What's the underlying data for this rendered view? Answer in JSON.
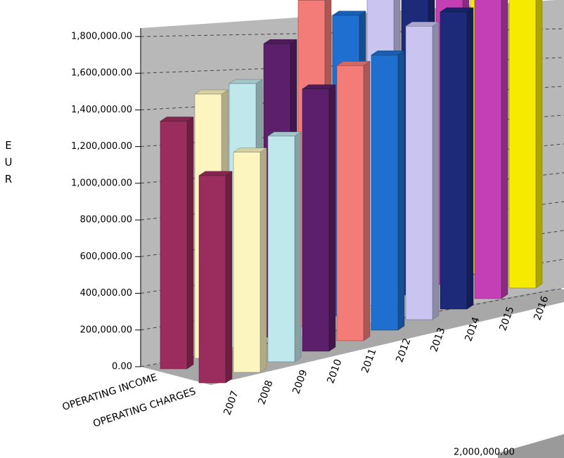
{
  "chart_data": {
    "type": "bar3d",
    "categories": [
      "OPERATING INCOME",
      "OPERATING CHARGES"
    ],
    "series": [
      {
        "name": "2007",
        "color": "#9b2d5e",
        "values": [
          1350000,
          1130000
        ]
      },
      {
        "name": "2008",
        "color": "#fdf5c0",
        "values": [
          1440000,
          1200000
        ]
      },
      {
        "name": "2009",
        "color": "#bfe8ec",
        "values": [
          1440000,
          1230000
        ]
      },
      {
        "name": "2010",
        "color": "#5c1f6b",
        "values": [
          1600000,
          1430000
        ]
      },
      {
        "name": "2011",
        "color": "#f47c78",
        "values": [
          1780000,
          1500000
        ]
      },
      {
        "name": "2012",
        "color": "#1f6fd1",
        "values": [
          1640000,
          1500000
        ]
      },
      {
        "name": "2013",
        "color": "#c9c5f0",
        "values": [
          1700000,
          1600000
        ]
      },
      {
        "name": "2014",
        "color": "#1d2a7a",
        "values": [
          1770000,
          1620000
        ]
      },
      {
        "name": "2015",
        "color": "#c43fb5",
        "values": [
          1780000,
          1680000
        ]
      },
      {
        "name": "2016",
        "color": "#f5ea00",
        "values": [
          1980000,
          1800000
        ]
      }
    ],
    "y_label": "EUR",
    "ylim": [
      0,
      2000000
    ],
    "yticks": [
      {
        "value": 0,
        "label": "0.00"
      },
      {
        "value": 200000,
        "label": "200,000.00"
      },
      {
        "value": 400000,
        "label": "400,000.00"
      },
      {
        "value": 600000,
        "label": "600,000.00"
      },
      {
        "value": 800000,
        "label": "800,000.00"
      },
      {
        "value": 1000000,
        "label": "1,000,000.00"
      },
      {
        "value": 1200000,
        "label": "1,200,000.00"
      },
      {
        "value": 1400000,
        "label": "1,400,000.00"
      },
      {
        "value": 1600000,
        "label": "1,600,000.00"
      },
      {
        "value": 1800000,
        "label": "1,800,000.00"
      }
    ],
    "grid": true
  },
  "next_chart": {
    "ytick_label": "2,000,000.00"
  }
}
